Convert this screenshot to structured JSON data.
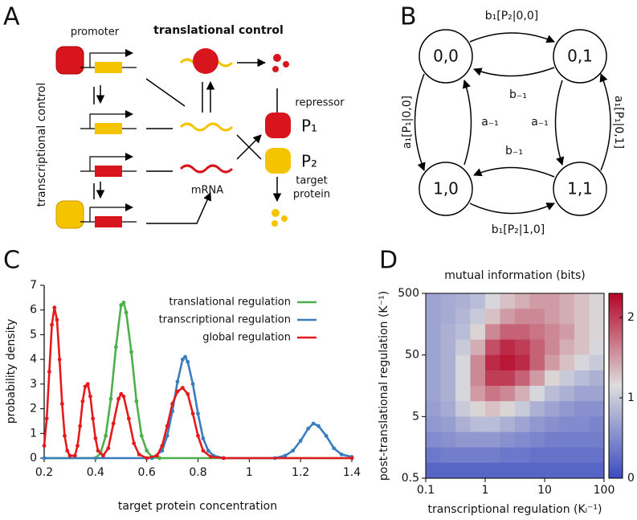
{
  "panel_labels": [
    "A",
    "B",
    "C",
    "D"
  ],
  "diagram_a": {
    "title": "translational control",
    "promoter": "promoter",
    "side_label": "transcriptional control",
    "mrna": "mRNA",
    "repressor": "repressor",
    "p1": "P₁",
    "p2": "P₂",
    "target": [
      "target",
      "protein"
    ]
  },
  "diagram_b": {
    "nodes": [
      "0,0",
      "0,1",
      "1,0",
      "1,1"
    ],
    "edges": [
      "b₁[P₂|0,0]",
      "b₋₁",
      "a₁[P₁|0,0]",
      "a₋₁",
      "a₋₁",
      "a₁[P₁|0,1]",
      "b₋₁",
      "b₁[P₂|1,0]"
    ]
  },
  "chart_data": [
    {
      "type": "line",
      "xlabel": "target protein concentration",
      "ylabel": "probability density",
      "xlim": [
        0.2,
        1.4
      ],
      "ylim": [
        0,
        7
      ],
      "xticks": [
        0.2,
        0.4,
        0.6,
        0.8,
        1,
        1.2,
        1.4
      ],
      "yticks": [
        0,
        1,
        2,
        3,
        4,
        5,
        6,
        7
      ],
      "legend": "upper right",
      "series": [
        {
          "name": "translational regulation",
          "color": "#4daf4a",
          "x": [
            0.2,
            0.4,
            0.42,
            0.44,
            0.46,
            0.48,
            0.5,
            0.51,
            0.52,
            0.54,
            0.56,
            0.58,
            0.6,
            0.62,
            0.65,
            1.4
          ],
          "values": [
            0,
            0,
            0.2,
            0.9,
            2.4,
            4.5,
            6.2,
            6.3,
            5.9,
            4.3,
            2.3,
            0.9,
            0.3,
            0.05,
            0,
            0
          ]
        },
        {
          "name": "transcriptional regulation",
          "color": "#3a7dbf",
          "x": [
            0.2,
            0.62,
            0.66,
            0.68,
            0.7,
            0.72,
            0.74,
            0.75,
            0.76,
            0.78,
            0.8,
            0.82,
            0.84,
            0.86,
            0.9,
            1.1,
            1.14,
            1.17,
            1.2,
            1.23,
            1.25,
            1.27,
            1.3,
            1.33,
            1.36,
            1.4
          ],
          "values": [
            0,
            0,
            0.3,
            0.9,
            1.9,
            3.1,
            4.0,
            4.1,
            3.9,
            3.0,
            1.8,
            0.8,
            0.3,
            0.1,
            0,
            0,
            0.1,
            0.3,
            0.7,
            1.2,
            1.4,
            1.3,
            0.9,
            0.4,
            0.15,
            0.05
          ]
        },
        {
          "name": "global regulation",
          "color": "#e41a1c",
          "x": [
            0.2,
            0.21,
            0.22,
            0.23,
            0.24,
            0.25,
            0.26,
            0.27,
            0.28,
            0.29,
            0.3,
            0.32,
            0.33,
            0.34,
            0.35,
            0.36,
            0.37,
            0.38,
            0.39,
            0.4,
            0.41,
            0.43,
            0.45,
            0.47,
            0.49,
            0.5,
            0.51,
            0.53,
            0.55,
            0.57,
            0.6,
            0.64,
            0.66,
            0.68,
            0.7,
            0.72,
            0.74,
            0.76,
            0.78,
            0.8,
            0.82,
            0.85,
            0.9,
            1.4
          ],
          "values": [
            0.5,
            1.6,
            3.5,
            5.4,
            6.1,
            5.6,
            4.0,
            2.2,
            0.9,
            0.3,
            0.1,
            0.1,
            0.5,
            1.3,
            2.3,
            2.9,
            3.0,
            2.5,
            1.6,
            0.8,
            0.3,
            0.1,
            0.4,
            1.4,
            2.4,
            2.6,
            2.5,
            1.6,
            0.6,
            0.15,
            0,
            0.1,
            0.5,
            1.3,
            2.2,
            2.7,
            2.85,
            2.6,
            1.8,
            0.9,
            0.3,
            0.05,
            0,
            0
          ]
        }
      ]
    },
    {
      "type": "heatmap",
      "title": "mutual information (bits)",
      "xlabel": "transcriptional regulation (Kₗ⁻¹)",
      "ylabel": "post-translational regulation (K⁻¹)",
      "xscale": "log",
      "yscale": "log",
      "xlim": [
        0.1,
        100
      ],
      "ylim": [
        0.5,
        500
      ],
      "xticks": [
        0.1,
        1,
        10,
        100
      ],
      "yticks": [
        0.5,
        5,
        50,
        500
      ],
      "zlim": [
        0,
        2.3
      ],
      "zticks": [
        0,
        1,
        2
      ],
      "values": [
        [
          0.7,
          0.75,
          0.8,
          0.9,
          1.1,
          1.3,
          1.4,
          1.5,
          1.5,
          1.4,
          1.3,
          1.2
        ],
        [
          0.7,
          0.75,
          0.85,
          1.0,
          1.3,
          1.5,
          1.6,
          1.6,
          1.5,
          1.4,
          1.3,
          1.2
        ],
        [
          0.7,
          0.8,
          0.9,
          1.2,
          1.6,
          1.8,
          1.8,
          1.7,
          1.6,
          1.5,
          1.3,
          1.2
        ],
        [
          0.7,
          0.8,
          1.0,
          1.4,
          1.9,
          2.1,
          2.0,
          1.8,
          1.6,
          1.4,
          1.3,
          1.1
        ],
        [
          0.7,
          0.8,
          1.1,
          1.6,
          2.1,
          2.2,
          2.1,
          1.8,
          1.5,
          1.3,
          1.1,
          1.0
        ],
        [
          0.7,
          0.8,
          1.1,
          1.6,
          2.0,
          2.0,
          1.8,
          1.5,
          1.2,
          1.0,
          0.9,
          0.8
        ],
        [
          0.7,
          0.8,
          1.1,
          1.5,
          1.7,
          1.6,
          1.4,
          1.1,
          0.9,
          0.8,
          0.7,
          0.7
        ],
        [
          0.65,
          0.75,
          1.0,
          1.2,
          1.3,
          1.2,
          1.0,
          0.8,
          0.7,
          0.6,
          0.55,
          0.55
        ],
        [
          0.6,
          0.65,
          0.8,
          0.9,
          0.9,
          0.8,
          0.7,
          0.6,
          0.55,
          0.5,
          0.5,
          0.45
        ],
        [
          0.5,
          0.55,
          0.6,
          0.6,
          0.6,
          0.55,
          0.5,
          0.45,
          0.4,
          0.4,
          0.4,
          0.4
        ],
        [
          0.35,
          0.4,
          0.4,
          0.4,
          0.4,
          0.35,
          0.35,
          0.3,
          0.3,
          0.3,
          0.3,
          0.3
        ],
        [
          0.2,
          0.2,
          0.2,
          0.2,
          0.2,
          0.2,
          0.2,
          0.2,
          0.2,
          0.2,
          0.2,
          0.2
        ]
      ]
    }
  ]
}
